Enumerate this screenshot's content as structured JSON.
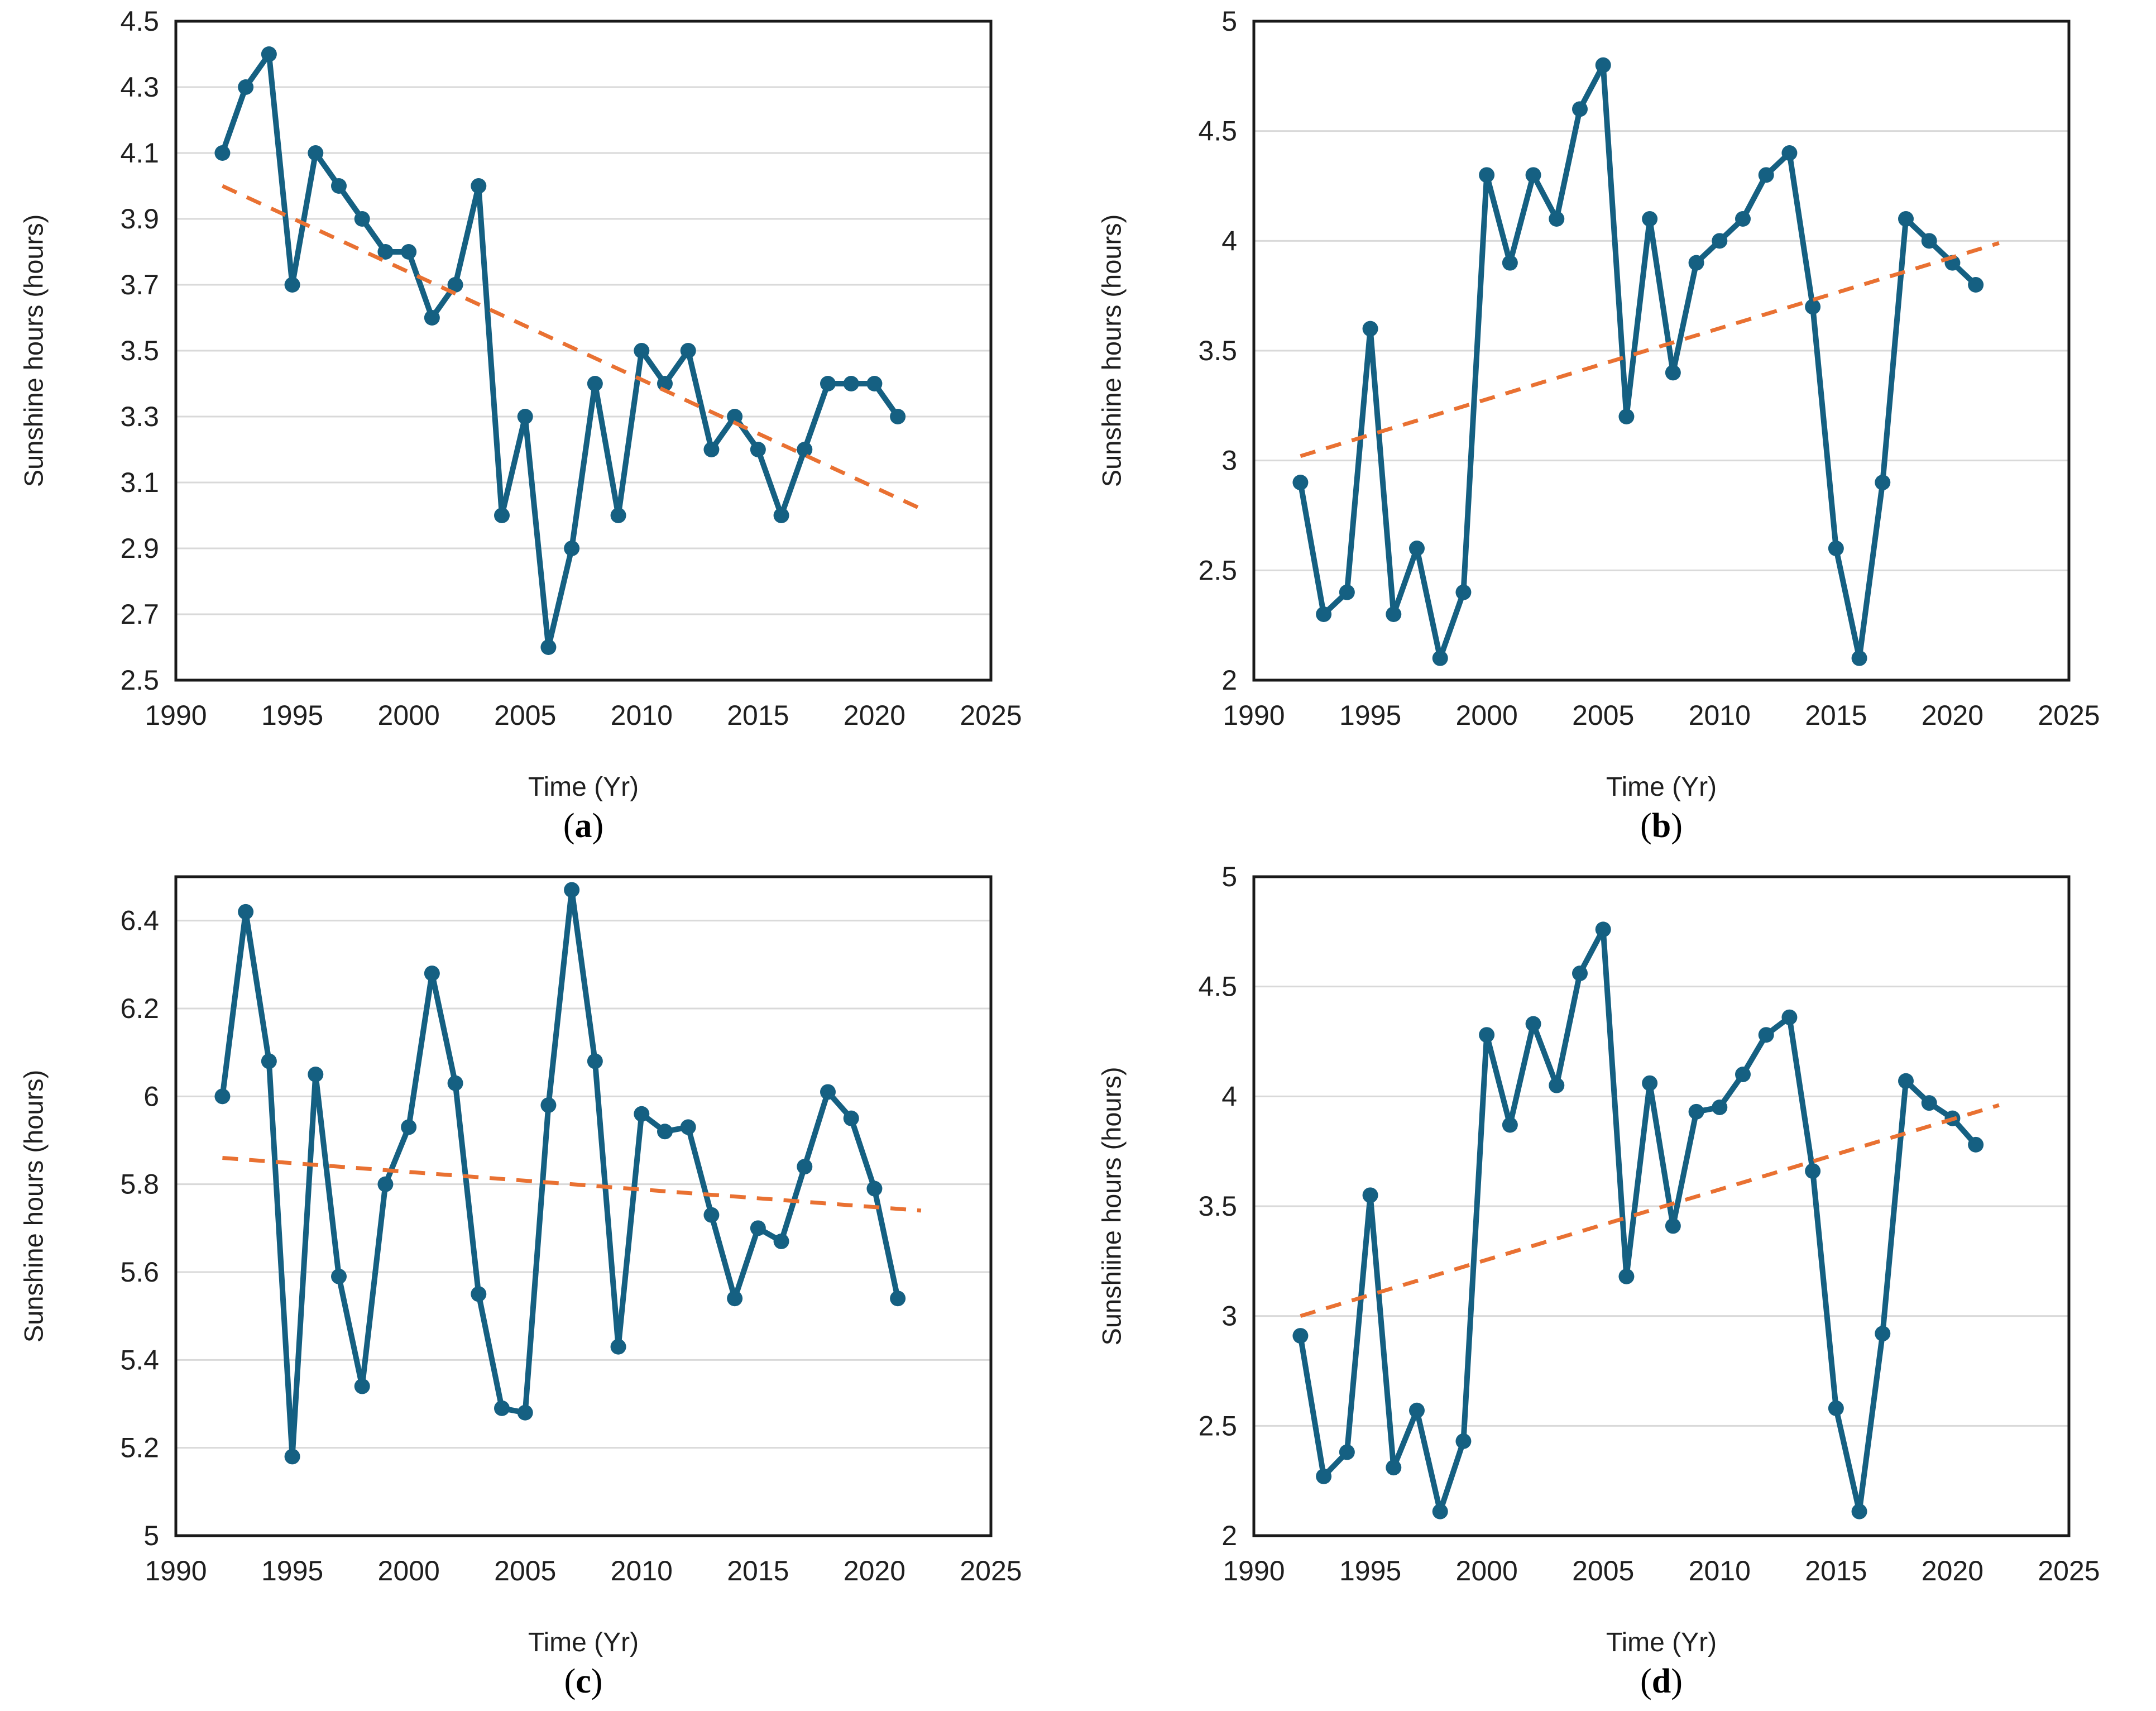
{
  "figure": {
    "background": "#ffffff",
    "panels": 4,
    "x_axis_title": "Time (Yr)",
    "y_axis_title": "Sunshine hours (hours)"
  },
  "colors": {
    "series": "#156082",
    "trendline": "#E97132",
    "gridline": "#D9D9D9",
    "plot_border": "#1a1a1a",
    "text": "#1f1f1f"
  },
  "chart_data": [
    {
      "id": "a",
      "type": "line",
      "caption": "(a)",
      "caption_open": "(",
      "caption_letter": "a",
      "caption_close": ")",
      "xlabel": "Time (Yr)",
      "ylabel": "Sunshine hours (hours)",
      "legend": "none",
      "grid": "horizontal",
      "marker": "circle",
      "xlim": [
        1990,
        2025
      ],
      "ylim": [
        2.5,
        4.5
      ],
      "xticks": [
        1990,
        1995,
        2000,
        2005,
        2010,
        2015,
        2020,
        2025
      ],
      "yticks": [
        2.5,
        2.7,
        2.9,
        3.1,
        3.3,
        3.5,
        3.7,
        3.9,
        4.1,
        4.3,
        4.5
      ],
      "x": [
        1992,
        1993,
        1994,
        1995,
        1996,
        1997,
        1998,
        1999,
        2000,
        2001,
        2002,
        2003,
        2004,
        2005,
        2006,
        2007,
        2008,
        2009,
        2010,
        2011,
        2012,
        2013,
        2014,
        2015,
        2016,
        2017,
        2018,
        2019,
        2020,
        2021
      ],
      "values": [
        4.1,
        4.3,
        4.4,
        3.7,
        4.1,
        4.0,
        3.9,
        3.8,
        3.8,
        3.6,
        3.7,
        4.0,
        3.0,
        3.3,
        2.6,
        2.9,
        3.4,
        3.0,
        3.5,
        3.4,
        3.5,
        3.2,
        3.3,
        3.2,
        3.0,
        3.2,
        3.4,
        3.4,
        3.4,
        3.3
      ],
      "trendline": {
        "style": "dashed",
        "x1": 1992,
        "y1": 4.0,
        "x2": 2022,
        "y2": 3.02
      }
    },
    {
      "id": "b",
      "type": "line",
      "caption": "(b)",
      "caption_open": "(",
      "caption_letter": "b",
      "caption_close": ")",
      "xlabel": "Time (Yr)",
      "ylabel": "Sunshine hours (hours)",
      "legend": "none",
      "grid": "horizontal",
      "marker": "circle",
      "xlim": [
        1990,
        2025
      ],
      "ylim": [
        2,
        5
      ],
      "xticks": [
        1990,
        1995,
        2000,
        2005,
        2010,
        2015,
        2020,
        2025
      ],
      "yticks": [
        2,
        2.5,
        3,
        3.5,
        4,
        4.5,
        5
      ],
      "x": [
        1992,
        1993,
        1994,
        1995,
        1996,
        1997,
        1998,
        1999,
        2000,
        2001,
        2002,
        2003,
        2004,
        2005,
        2006,
        2007,
        2008,
        2009,
        2010,
        2011,
        2012,
        2013,
        2014,
        2015,
        2016,
        2017,
        2018,
        2019,
        2020,
        2021
      ],
      "values": [
        2.9,
        2.3,
        2.4,
        3.6,
        2.3,
        2.6,
        2.1,
        2.4,
        4.3,
        3.9,
        4.3,
        4.1,
        4.6,
        4.8,
        3.2,
        4.1,
        3.4,
        3.9,
        4.0,
        4.1,
        4.3,
        4.4,
        3.7,
        2.6,
        2.1,
        2.9,
        4.1,
        4.0,
        3.9,
        3.8
      ],
      "trendline": {
        "style": "dashed",
        "x1": 1992,
        "y1": 3.02,
        "x2": 2022,
        "y2": 3.99
      }
    },
    {
      "id": "c",
      "type": "line",
      "caption": "(c)",
      "caption_open": "(",
      "caption_letter": "c",
      "caption_close": ")",
      "xlabel": "Time (Yr)",
      "ylabel": "Sunshine hours (hours)",
      "legend": "none",
      "grid": "horizontal",
      "marker": "circle",
      "xlim": [
        1990,
        2025
      ],
      "ylim": [
        5,
        6.5
      ],
      "xticks": [
        1990,
        1995,
        2000,
        2005,
        2010,
        2015,
        2020,
        2025
      ],
      "yticks": [
        5,
        5.2,
        5.4,
        5.6,
        5.8,
        6,
        6.2,
        6.4
      ],
      "x": [
        1992,
        1993,
        1994,
        1995,
        1996,
        1997,
        1998,
        1999,
        2000,
        2001,
        2002,
        2003,
        2004,
        2005,
        2006,
        2007,
        2008,
        2009,
        2010,
        2011,
        2012,
        2013,
        2014,
        2015,
        2016,
        2017,
        2018,
        2019,
        2020,
        2021
      ],
      "values": [
        6.0,
        6.42,
        6.08,
        5.18,
        6.05,
        5.59,
        5.34,
        5.8,
        5.93,
        6.28,
        6.03,
        5.55,
        5.29,
        5.28,
        5.98,
        6.47,
        6.08,
        5.43,
        5.96,
        5.92,
        5.93,
        5.73,
        5.54,
        5.7,
        5.67,
        5.84,
        6.01,
        5.95,
        5.79,
        5.54
      ],
      "trendline": {
        "style": "dashed",
        "x1": 1992,
        "y1": 5.86,
        "x2": 2022,
        "y2": 5.74
      }
    },
    {
      "id": "d",
      "type": "line",
      "caption": "(d)",
      "caption_open": "(",
      "caption_letter": "d",
      "caption_close": ")",
      "xlabel": "Time (Yr)",
      "ylabel": "Sunshiine hours (hours)",
      "legend": "none",
      "grid": "horizontal",
      "marker": "circle",
      "xlim": [
        1990,
        2025
      ],
      "ylim": [
        2,
        5
      ],
      "xticks": [
        1990,
        1995,
        2000,
        2005,
        2010,
        2015,
        2020,
        2025
      ],
      "yticks": [
        2,
        2.5,
        3,
        3.5,
        4,
        4.5,
        5
      ],
      "x": [
        1992,
        1993,
        1994,
        1995,
        1996,
        1997,
        1998,
        1999,
        2000,
        2001,
        2002,
        2003,
        2004,
        2005,
        2006,
        2007,
        2008,
        2009,
        2010,
        2011,
        2012,
        2013,
        2014,
        2015,
        2016,
        2017,
        2018,
        2019,
        2020,
        2021
      ],
      "values": [
        2.91,
        2.27,
        2.38,
        3.55,
        2.31,
        2.57,
        2.11,
        2.43,
        4.28,
        3.87,
        4.33,
        4.05,
        4.56,
        4.76,
        3.18,
        4.06,
        3.41,
        3.93,
        3.95,
        4.1,
        4.28,
        4.36,
        3.66,
        2.58,
        2.11,
        2.92,
        4.07,
        3.97,
        3.9,
        3.78
      ],
      "trendline": {
        "style": "dashed",
        "x1": 1992,
        "y1": 3.0,
        "x2": 2022,
        "y2": 3.96
      }
    }
  ]
}
